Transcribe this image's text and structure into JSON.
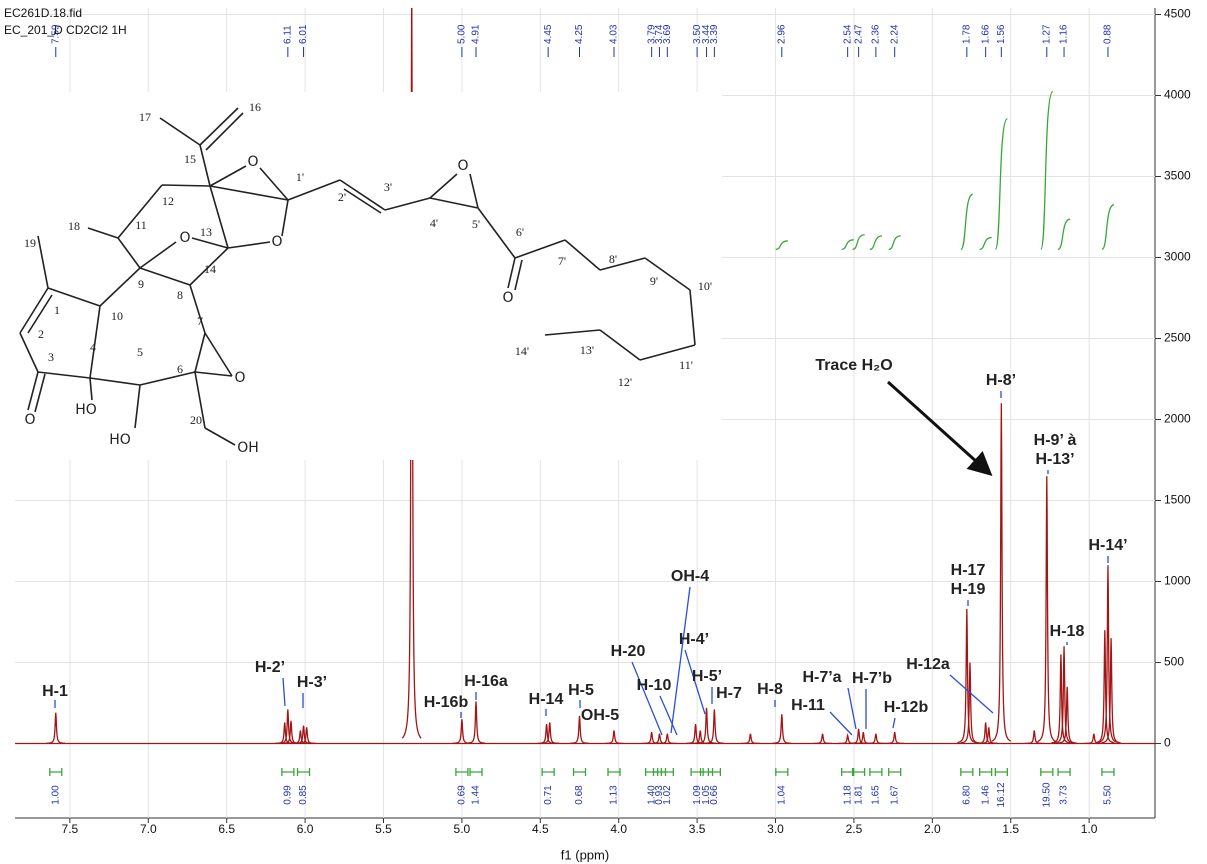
{
  "chart_data": {
    "type": "nmr",
    "title": [
      "EC261D.18.fid",
      "EC_201_D  CD2Cl2  1H"
    ],
    "x_label": "f1 (ppm)",
    "xlim": [
      7.85,
      0.58
    ],
    "xticks": [
      7.5,
      {
        "value": 7,
        "label": "7.0"
      },
      6.5,
      {
        "value": 6,
        "label": "6.0"
      },
      5.5,
      {
        "value": 5,
        "label": "5.0"
      },
      4.5,
      {
        "value": 4,
        "label": "4.0"
      },
      3.5,
      {
        "value": 3,
        "label": "3.0"
      },
      2.5,
      {
        "value": 2,
        "label": "2.0"
      },
      1.5,
      {
        "value": 1,
        "label": "1.0"
      }
    ],
    "ylim": [
      -460,
      4540
    ],
    "yticks": [
      0,
      500,
      1000,
      1500,
      2000,
      2500,
      3000,
      3500,
      4000,
      4500
    ],
    "grid": true,
    "color": "#a31515",
    "peaks": {
      "x": [
        7.59,
        6.13,
        6.11,
        6.09,
        6.03,
        6.01,
        5.99,
        5.32,
        5.0,
        4.91,
        4.46,
        4.44,
        4.25,
        4.03,
        3.79,
        3.74,
        3.69,
        3.51,
        3.48,
        3.44,
        3.39,
        3.16,
        2.96,
        2.7,
        2.54,
        2.47,
        2.44,
        2.36,
        2.24,
        1.78,
        1.76,
        1.66,
        1.64,
        1.56,
        1.35,
        1.27,
        1.18,
        1.16,
        1.14,
        0.97,
        0.9,
        0.88,
        0.86
      ],
      "values": [
        190,
        130,
        210,
        140,
        80,
        110,
        100,
        4700,
        150,
        260,
        120,
        130,
        170,
        80,
        70,
        60,
        60,
        120,
        80,
        220,
        210,
        60,
        180,
        60,
        50,
        90,
        70,
        60,
        70,
        830,
        500,
        130,
        100,
        2100,
        80,
        1650,
        550,
        600,
        350,
        60,
        700,
        1100,
        650
      ]
    },
    "peak_labels": [
      7.59,
      6.11,
      6.01,
      {
        "value": 5,
        "label": "5.00"
      },
      4.91,
      4.45,
      4.25,
      4.03,
      3.79,
      3.74,
      3.69,
      {
        "value": 3.5,
        "label": "3.50"
      },
      3.44,
      3.39,
      2.96,
      2.54,
      2.47,
      2.36,
      2.24,
      1.78,
      1.66,
      1.56,
      1.27,
      1.16,
      0.88
    ],
    "integrals": {
      "color": "#3aa63a",
      "x": [
        7.59,
        6.11,
        6.01,
        5.0,
        4.91,
        4.45,
        4.25,
        4.03,
        3.79,
        3.74,
        3.69,
        3.5,
        3.44,
        3.39,
        2.96,
        2.54,
        2.47,
        2.36,
        2.24,
        1.78,
        1.66,
        1.56,
        1.27,
        1.16,
        0.88
      ],
      "values": [
        1,
        0.99,
        0.85,
        0.69,
        1.44,
        0.71,
        0.68,
        1.13,
        1.4,
        0.93,
        1.02,
        1.09,
        1.05,
        0.66,
        1.04,
        1.18,
        1.81,
        1.65,
        1.67,
        6.8,
        1.46,
        16.12,
        19.5,
        3.73,
        5.5
      ],
      "value_labels": [
        "1.00",
        "0.99",
        "0.85",
        "0.69",
        "1.44",
        "0.71",
        "0.68",
        "1.13",
        "1.40",
        "0.93",
        "1.02",
        "1.09",
        "1.05",
        "0.66",
        "1.04",
        "1.18",
        "1.81",
        "1.65",
        "1.67",
        "6.80",
        "1.46",
        "16.12",
        "19.50",
        "3.73",
        "5.50"
      ]
    },
    "annotations": [
      "H-1",
      "H-2’",
      "H-3’",
      "H-16b",
      "H-16a",
      "H-14",
      "H-5",
      "OH-5",
      "H-20",
      "H-10",
      "OH-4",
      "H-4’",
      "H-5’",
      "H-7",
      "H-8",
      "H-11",
      "H-7’a",
      "H-7’b",
      "H-12b",
      "H-12a",
      "H-17",
      "H-19",
      "H-8’",
      "H-9’ à",
      "H-13’",
      "H-18",
      "H-14’",
      "Trace H₂O"
    ]
  },
  "structure": {
    "labels": [
      "16",
      "17",
      "15",
      "1'",
      "3'",
      "2'",
      "12",
      "13",
      "18",
      "11",
      "19",
      "14",
      "9",
      "8",
      "10",
      "1",
      "2",
      "3",
      "4",
      "5",
      "6",
      "7",
      "20",
      "4'",
      "5'",
      "6'",
      "7'",
      "8'",
      "9'",
      "10'",
      "11'",
      "12'",
      "13'",
      "14'",
      "O",
      "O",
      "O",
      "O",
      "O",
      "O",
      "O",
      "HO",
      "HO",
      "OH"
    ]
  }
}
